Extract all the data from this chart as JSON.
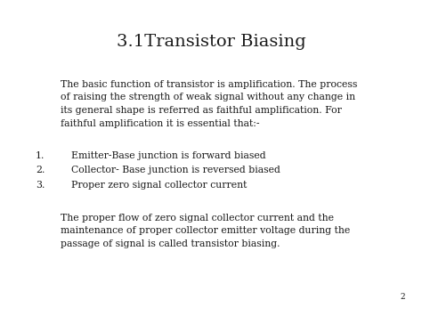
{
  "title": "3.1Transistor Biasing",
  "background_color": "#ffffff",
  "text_color": "#1a1a1a",
  "title_fontsize": 14,
  "body_fontsize": 7.8,
  "list_fontsize": 7.8,
  "paragraph1_lines": [
    "The basic function of transistor is amplification. The process",
    "of raising the strength of weak signal without any change in",
    "its general shape is referred as faithful amplification. For",
    "faithful amplification it is essential that:-"
  ],
  "list_numbers": [
    "1.",
    "2.",
    "3."
  ],
  "list_items": [
    "Emitter-Base junction is forward biased",
    "Collector- Base junction is reversed biased",
    "Proper zero signal collector current"
  ],
  "paragraph2_lines": [
    "The proper flow of zero signal collector current and the",
    "maintenance of proper collector emitter voltage during the",
    "passage of signal is called transistor biasing."
  ],
  "page_number": "2",
  "font_family": "DejaVu Serif"
}
